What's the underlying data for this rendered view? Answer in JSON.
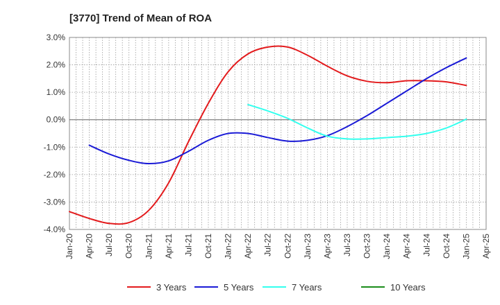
{
  "chart_data": {
    "type": "line",
    "title": "[3770]  Trend of Mean of ROA",
    "xlabel": "",
    "ylabel": "",
    "x_ticks": [
      "Jan-20",
      "Apr-20",
      "Jul-20",
      "Oct-20",
      "Jan-21",
      "Apr-21",
      "Jul-21",
      "Oct-21",
      "Jan-22",
      "Apr-22",
      "Jul-22",
      "Oct-22",
      "Jan-23",
      "Apr-23",
      "Jul-23",
      "Oct-23",
      "Jan-24",
      "Apr-24",
      "Jul-24",
      "Oct-24",
      "Jan-25",
      "Apr-25"
    ],
    "y_ticks": [
      "3.0%",
      "2.0%",
      "1.0%",
      "0.0%",
      "-1.0%",
      "-2.0%",
      "-3.0%",
      "-4.0%"
    ],
    "ylim": [
      -4.0,
      3.0
    ],
    "grid": true,
    "legend_position": "bottom",
    "series": [
      {
        "name": "3 Years",
        "color": "#e31a1c",
        "points": [
          [
            "Jan-20",
            -3.35
          ],
          [
            "Apr-20",
            -3.6
          ],
          [
            "Jul-20",
            -3.78
          ],
          [
            "Oct-20",
            -3.75
          ],
          [
            "Jan-21",
            -3.3
          ],
          [
            "Apr-21",
            -2.3
          ],
          [
            "Jul-21",
            -0.8
          ],
          [
            "Oct-21",
            0.6
          ],
          [
            "Jan-22",
            1.75
          ],
          [
            "Apr-22",
            2.4
          ],
          [
            "Jul-22",
            2.65
          ],
          [
            "Oct-22",
            2.65
          ],
          [
            "Jan-23",
            2.35
          ],
          [
            "Apr-23",
            1.95
          ],
          [
            "Jul-23",
            1.6
          ],
          [
            "Oct-23",
            1.4
          ],
          [
            "Jan-24",
            1.35
          ],
          [
            "Apr-24",
            1.42
          ],
          [
            "Jul-24",
            1.42
          ],
          [
            "Oct-24",
            1.38
          ],
          [
            "Jan-25",
            1.25
          ]
        ]
      },
      {
        "name": "5 Years",
        "color": "#1a1ad6",
        "points": [
          [
            "Apr-20",
            -0.93
          ],
          [
            "Jul-20",
            -1.25
          ],
          [
            "Oct-20",
            -1.48
          ],
          [
            "Jan-21",
            -1.6
          ],
          [
            "Apr-21",
            -1.5
          ],
          [
            "Jul-21",
            -1.15
          ],
          [
            "Oct-21",
            -0.75
          ],
          [
            "Jan-22",
            -0.5
          ],
          [
            "Apr-22",
            -0.5
          ],
          [
            "Jul-22",
            -0.65
          ],
          [
            "Oct-22",
            -0.78
          ],
          [
            "Jan-23",
            -0.75
          ],
          [
            "Apr-23",
            -0.58
          ],
          [
            "Jul-23",
            -0.25
          ],
          [
            "Oct-23",
            0.15
          ],
          [
            "Jan-24",
            0.6
          ],
          [
            "Apr-24",
            1.05
          ],
          [
            "Jul-24",
            1.5
          ],
          [
            "Oct-24",
            1.9
          ],
          [
            "Jan-25",
            2.25
          ]
        ]
      },
      {
        "name": "7 Years",
        "color": "#33ffee",
        "points": [
          [
            "Apr-22",
            0.55
          ],
          [
            "Jul-22",
            0.32
          ],
          [
            "Oct-22",
            0.05
          ],
          [
            "Jan-23",
            -0.3
          ],
          [
            "Apr-23",
            -0.6
          ],
          [
            "Jul-23",
            -0.7
          ],
          [
            "Oct-23",
            -0.7
          ],
          [
            "Jan-24",
            -0.65
          ],
          [
            "Apr-24",
            -0.6
          ],
          [
            "Jul-24",
            -0.5
          ],
          [
            "Oct-24",
            -0.3
          ],
          [
            "Jan-25",
            0.02
          ]
        ]
      },
      {
        "name": "10 Years",
        "color": "#1a8c1a",
        "points": []
      }
    ]
  }
}
